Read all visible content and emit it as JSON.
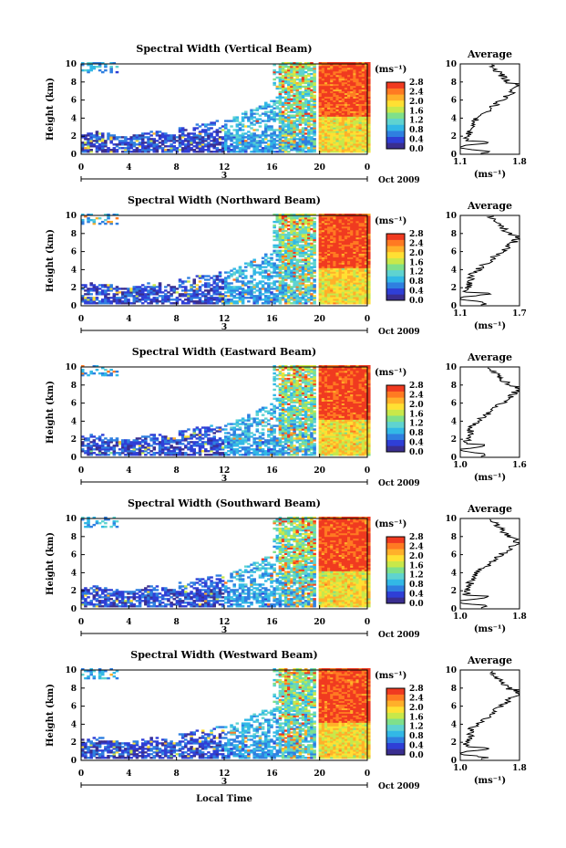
{
  "figure": {
    "xlabel": "Local Time",
    "date_text": "Oct 2009",
    "day_label": "3",
    "cbar_unit_text": "(ms⁻¹)",
    "avg_title": "Average",
    "avg_unit_text": "(ms⁻¹)",
    "ylabel": "Height (km)"
  },
  "chart_data": [
    {
      "type": "heatmap",
      "title": "Spectral Width (Vertical Beam)",
      "ylabel": "Height (km)",
      "xlabel": "",
      "x_ticks": [
        "0",
        "4",
        "8",
        "12",
        "16",
        "20",
        "0"
      ],
      "y_ticks": [
        "0",
        "2",
        "4",
        "6",
        "8",
        "10"
      ],
      "xlim": [
        0,
        24
      ],
      "ylim": [
        0,
        10
      ],
      "colorbar": {
        "unit": "(ms⁻¹)",
        "range": [
          0.0,
          2.8
        ],
        "ticks": [
          "0.0",
          "0.4",
          "0.8",
          "1.2",
          "1.6",
          "2.0",
          "2.4",
          "2.8"
        ]
      },
      "average_profile": {
        "title": "Average",
        "xlabel": "(ms⁻¹)",
        "x_ticks": [
          "1.1",
          "1.8"
        ],
        "xlim": [
          1.1,
          1.8
        ],
        "y_ticks": [
          "0",
          "2",
          "4",
          "6",
          "8",
          "10"
        ]
      }
    },
    {
      "type": "heatmap",
      "title": "Spectral Width (Northward Beam)",
      "ylabel": "Height (km)",
      "xlabel": "",
      "x_ticks": [
        "0",
        "4",
        "8",
        "12",
        "16",
        "20",
        "0"
      ],
      "y_ticks": [
        "0",
        "2",
        "4",
        "6",
        "8",
        "10"
      ],
      "xlim": [
        0,
        24
      ],
      "ylim": [
        0,
        10
      ],
      "colorbar": {
        "unit": "(ms⁻¹)",
        "range": [
          0.0,
          2.8
        ],
        "ticks": [
          "0.0",
          "0.4",
          "0.8",
          "1.2",
          "1.6",
          "2.0",
          "2.4",
          "2.8"
        ]
      },
      "average_profile": {
        "title": "Average",
        "xlabel": "(ms⁻¹)",
        "x_ticks": [
          "1.1",
          "1.7"
        ],
        "xlim": [
          1.1,
          1.7
        ],
        "y_ticks": [
          "0",
          "2",
          "4",
          "6",
          "8",
          "10"
        ]
      }
    },
    {
      "type": "heatmap",
      "title": "Spectral Width (Eastward Beam)",
      "ylabel": "Height (km)",
      "xlabel": "",
      "x_ticks": [
        "0",
        "4",
        "8",
        "12",
        "16",
        "20",
        "0"
      ],
      "y_ticks": [
        "0",
        "2",
        "4",
        "6",
        "8",
        "10"
      ],
      "xlim": [
        0,
        24
      ],
      "ylim": [
        0,
        10
      ],
      "colorbar": {
        "unit": "(ms⁻¹)",
        "range": [
          0.0,
          2.8
        ],
        "ticks": [
          "0.0",
          "0.4",
          "0.8",
          "1.2",
          "1.6",
          "2.0",
          "2.4",
          "2.8"
        ]
      },
      "average_profile": {
        "title": "Average",
        "xlabel": "(ms⁻¹)",
        "x_ticks": [
          "1.0",
          "1.6"
        ],
        "xlim": [
          1.0,
          1.6
        ],
        "y_ticks": [
          "0",
          "2",
          "4",
          "6",
          "8",
          "10"
        ]
      }
    },
    {
      "type": "heatmap",
      "title": "Spectral Width (Southward Beam)",
      "ylabel": "Height (km)",
      "xlabel": "",
      "x_ticks": [
        "0",
        "4",
        "8",
        "12",
        "16",
        "20",
        "0"
      ],
      "y_ticks": [
        "0",
        "2",
        "4",
        "6",
        "8",
        "10"
      ],
      "xlim": [
        0,
        24
      ],
      "ylim": [
        0,
        10
      ],
      "colorbar": {
        "unit": "(ms⁻¹)",
        "range": [
          0.0,
          2.8
        ],
        "ticks": [
          "0.0",
          "0.4",
          "0.8",
          "1.2",
          "1.6",
          "2.0",
          "2.4",
          "2.8"
        ]
      },
      "average_profile": {
        "title": "Average",
        "xlabel": "(ms⁻¹)",
        "x_ticks": [
          "1.0",
          "1.8"
        ],
        "xlim": [
          1.0,
          1.8
        ],
        "y_ticks": [
          "0",
          "2",
          "4",
          "6",
          "8",
          "10"
        ]
      }
    },
    {
      "type": "heatmap",
      "title": "Spectral Width (Westward Beam)",
      "ylabel": "Height (km)",
      "xlabel": "Local Time",
      "x_ticks": [
        "0",
        "4",
        "8",
        "12",
        "16",
        "20",
        "0"
      ],
      "y_ticks": [
        "0",
        "2",
        "4",
        "6",
        "8",
        "10"
      ],
      "xlim": [
        0,
        24
      ],
      "ylim": [
        0,
        10
      ],
      "colorbar": {
        "unit": "(ms⁻¹)",
        "range": [
          0.0,
          2.8
        ],
        "ticks": [
          "0.0",
          "0.4",
          "0.8",
          "1.2",
          "1.6",
          "2.0",
          "2.4",
          "2.8"
        ]
      },
      "average_profile": {
        "title": "Average",
        "xlabel": "(ms⁻¹)",
        "x_ticks": [
          "1.0",
          "1.8"
        ],
        "xlim": [
          1.0,
          1.8
        ],
        "y_ticks": [
          "0",
          "2",
          "4",
          "6",
          "8",
          "10"
        ]
      }
    }
  ],
  "colors": {
    "colormap": [
      "#3a2e8f",
      "#2f3fd6",
      "#2f7fe0",
      "#32b8e6",
      "#5fd3d0",
      "#7fe08a",
      "#c8e84a",
      "#ffe033",
      "#ffb02a",
      "#ff7a22",
      "#f03a20"
    ]
  }
}
